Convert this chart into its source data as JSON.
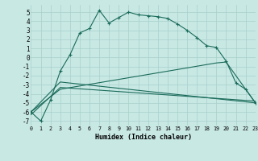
{
  "xlabel": "Humidex (Indice chaleur)",
  "bg_color": "#c8e8e4",
  "grid_color": "#a8d0cc",
  "line_color": "#1a6b5a",
  "xlim": [
    0,
    23
  ],
  "ylim": [
    -7.5,
    5.8
  ],
  "ytick_vals": [
    -7,
    -6,
    -5,
    -4,
    -3,
    -2,
    -1,
    0,
    1,
    2,
    3,
    4,
    5
  ],
  "xtick_vals": [
    0,
    1,
    2,
    3,
    4,
    5,
    6,
    7,
    8,
    9,
    10,
    11,
    12,
    13,
    14,
    15,
    16,
    17,
    18,
    19,
    20,
    21,
    22,
    23
  ],
  "line1_x": [
    0,
    1,
    2,
    3,
    4,
    5,
    6,
    7,
    8,
    9,
    10,
    11,
    12,
    13,
    14,
    15,
    16,
    17,
    18,
    19,
    20,
    21,
    22,
    23
  ],
  "line1_y": [
    -6.0,
    -7.0,
    -4.7,
    -1.5,
    0.3,
    2.7,
    3.2,
    5.2,
    3.8,
    4.4,
    5.0,
    4.7,
    4.6,
    4.5,
    4.3,
    3.7,
    3.0,
    2.2,
    1.3,
    1.1,
    -0.4,
    -2.8,
    -3.5,
    -5.0
  ],
  "line2_x": [
    0,
    3,
    23
  ],
  "line2_y": [
    -6.0,
    -2.7,
    -5.0
  ],
  "line3_x": [
    0,
    3,
    23
  ],
  "line3_y": [
    -6.3,
    -3.3,
    -4.8
  ],
  "line4_x": [
    0,
    3,
    19,
    20,
    23
  ],
  "line4_y": [
    -6.0,
    -3.5,
    -0.6,
    -0.5,
    -5.0
  ]
}
